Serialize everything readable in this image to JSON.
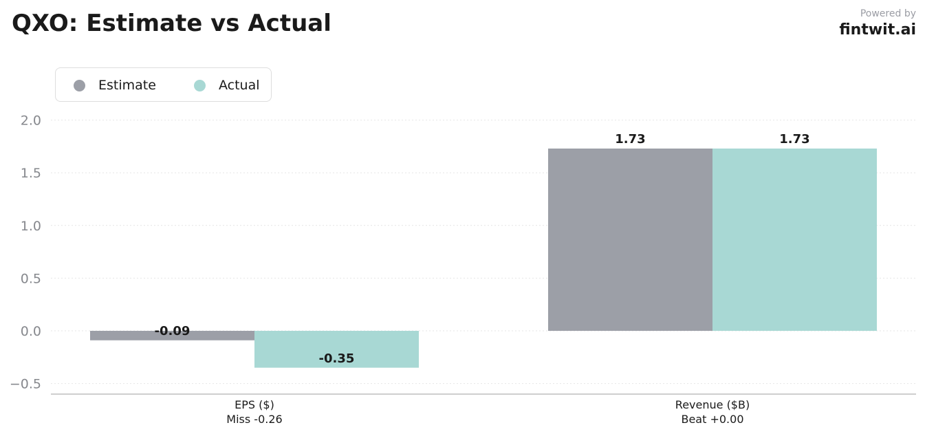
{
  "chart_data": {
    "type": "bar",
    "title": "QXO: Estimate vs Actual",
    "categories": [
      "EPS ($)",
      "Revenue ($B)"
    ],
    "category_sublabels": [
      "Miss -0.26",
      "Beat +0.00"
    ],
    "series": [
      {
        "name": "Estimate",
        "values": [
          -0.09,
          1.73
        ],
        "value_labels": [
          "-0.09",
          "1.73"
        ],
        "color": "#9c9fa7"
      },
      {
        "name": "Actual",
        "values": [
          -0.35,
          1.73
        ],
        "value_labels": [
          "-0.35",
          "1.73"
        ],
        "color": "#a8d8d4"
      }
    ],
    "ylim": [
      -0.61,
      2.1
    ],
    "yticks": [
      -0.5,
      0.0,
      0.5,
      1.0,
      1.5,
      2.0
    ],
    "ytick_labels": [
      "−0.5",
      "0.0",
      "0.5",
      "1.0",
      "1.5",
      "2.0"
    ],
    "xlabel": "",
    "ylabel": "",
    "grid": true,
    "legend_position": "top-left"
  },
  "branding": {
    "powered_by": "Powered by",
    "name": "fintwit.ai"
  }
}
